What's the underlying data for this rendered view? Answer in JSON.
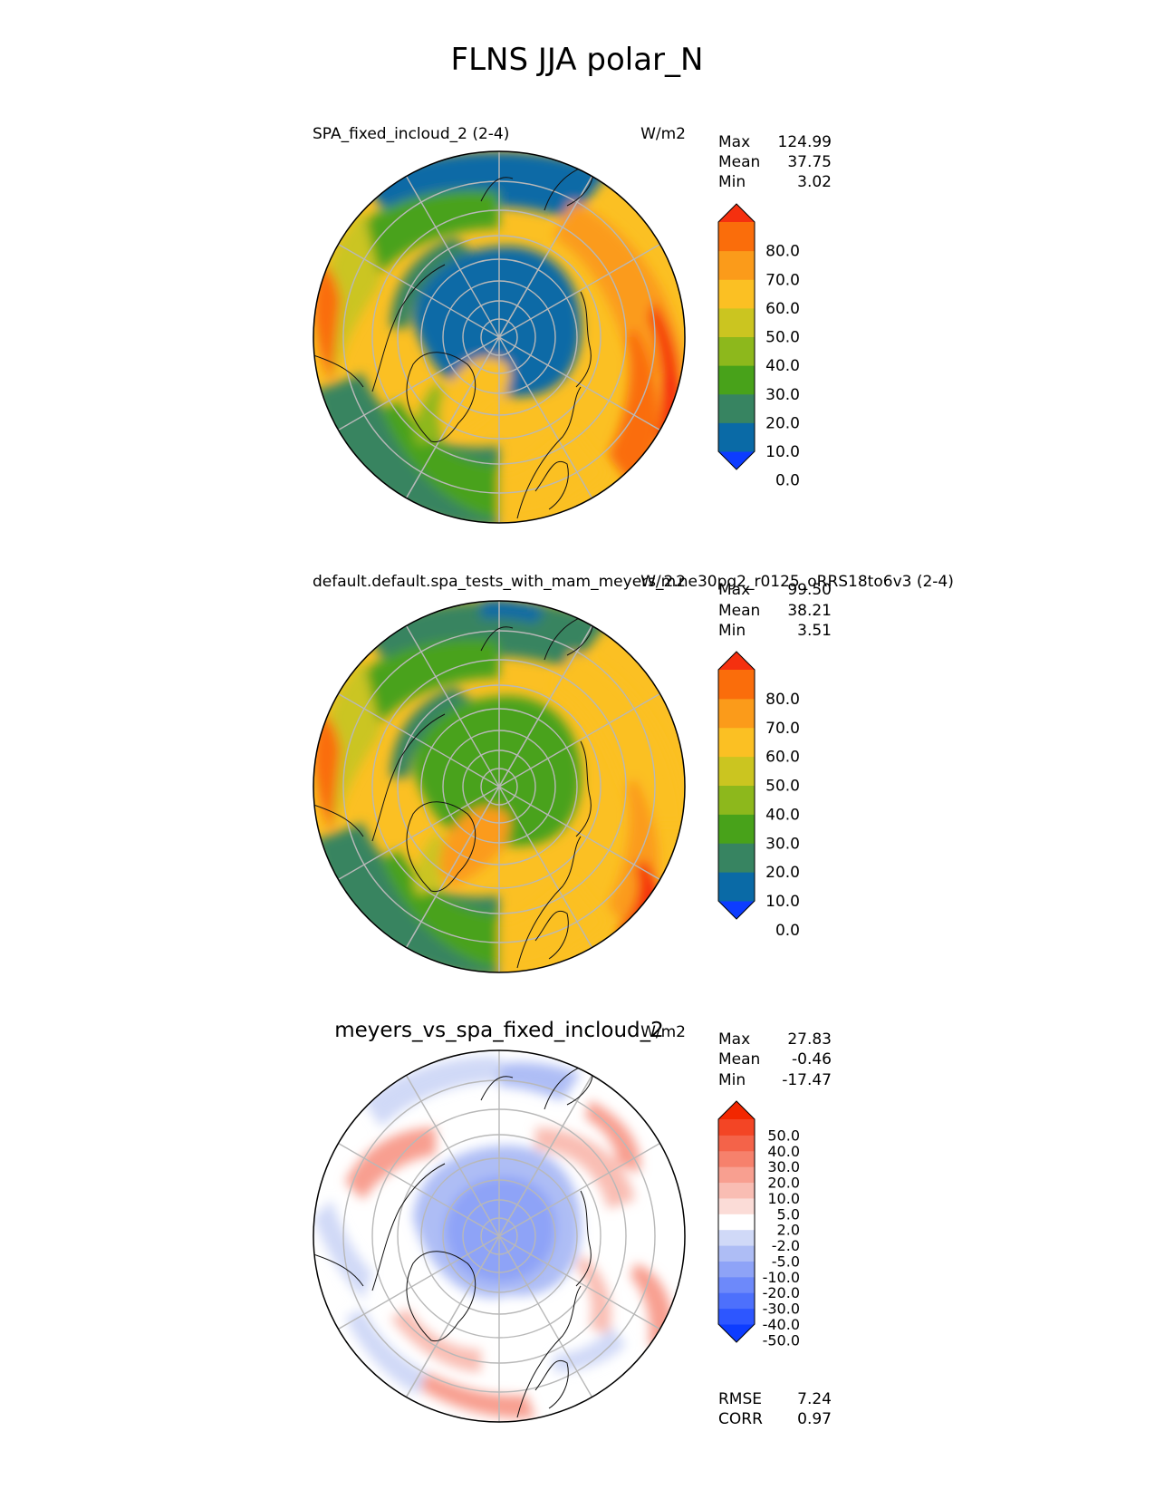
{
  "title": "FLNS JJA polar_N",
  "chart_data": [
    {
      "type": "heatmap",
      "projection": "north-polar-stereographic",
      "title_left": "SPA_fixed_incloud_2 (2-4)",
      "units": "W/m2",
      "stats": [
        {
          "label": "Max",
          "value": "124.99"
        },
        {
          "label": "Mean",
          "value": "37.75"
        },
        {
          "label": "Min",
          "value": "3.02"
        }
      ],
      "colorbar": {
        "extend": "both",
        "tick_labels": [
          "80.0",
          "70.0",
          "60.0",
          "50.0",
          "40.0",
          "30.0",
          "20.0",
          "10.0",
          "0.0"
        ],
        "colors": [
          "#0d3cff",
          "#0a6aa6",
          "#378461",
          "#48a21a",
          "#8db81c",
          "#cbc520",
          "#fbc023",
          "#fb9b1a",
          "#fa6d0b",
          "#f5300f"
        ]
      }
    },
    {
      "type": "heatmap",
      "projection": "north-polar-stereographic",
      "title_left": "default.default.spa_tests_with_mam_meyers_2.ne30pg2_r0125_oRRS18to6v3 (2-4)",
      "units": "W/m2",
      "stats": [
        {
          "label": "Max",
          "value": "99.50"
        },
        {
          "label": "Mean",
          "value": "38.21"
        },
        {
          "label": "Min",
          "value": "3.51"
        }
      ],
      "colorbar": {
        "extend": "both",
        "tick_labels": [
          "80.0",
          "70.0",
          "60.0",
          "50.0",
          "40.0",
          "30.0",
          "20.0",
          "10.0",
          "0.0"
        ],
        "colors": [
          "#0d3cff",
          "#0a6aa6",
          "#378461",
          "#48a21a",
          "#8db81c",
          "#cbc520",
          "#fbc023",
          "#fb9b1a",
          "#fa6d0b",
          "#f5300f"
        ]
      }
    },
    {
      "type": "heatmap",
      "projection": "north-polar-stereographic",
      "title_center": "meyers_vs_spa_fixed_incloud_2",
      "units": "W/m2",
      "stats": [
        {
          "label": "Max",
          "value": "27.83"
        },
        {
          "label": "Mean",
          "value": "-0.46"
        },
        {
          "label": "Min",
          "value": "-17.47"
        }
      ],
      "metrics": [
        {
          "label": "RMSE",
          "value": "7.24"
        },
        {
          "label": "CORR",
          "value": "0.97"
        }
      ],
      "colorbar": {
        "extend": "both",
        "tick_labels": [
          "50.0",
          "40.0",
          "30.0",
          "20.0",
          "10.0",
          "5.0",
          "2.0",
          "-2.0",
          "-5.0",
          "-10.0",
          "-20.0",
          "-30.0",
          "-40.0",
          "-50.0"
        ],
        "colors": [
          "#0d3cff",
          "#2d56ff",
          "#4d70fc",
          "#6d89fa",
          "#8ea3f7",
          "#aebdf5",
          "#d0d9f7",
          "#ffffff",
          "#fbdcd7",
          "#f9bdb3",
          "#f89f90",
          "#f6816c",
          "#f46349",
          "#f34525",
          "#f22700"
        ]
      }
    }
  ]
}
